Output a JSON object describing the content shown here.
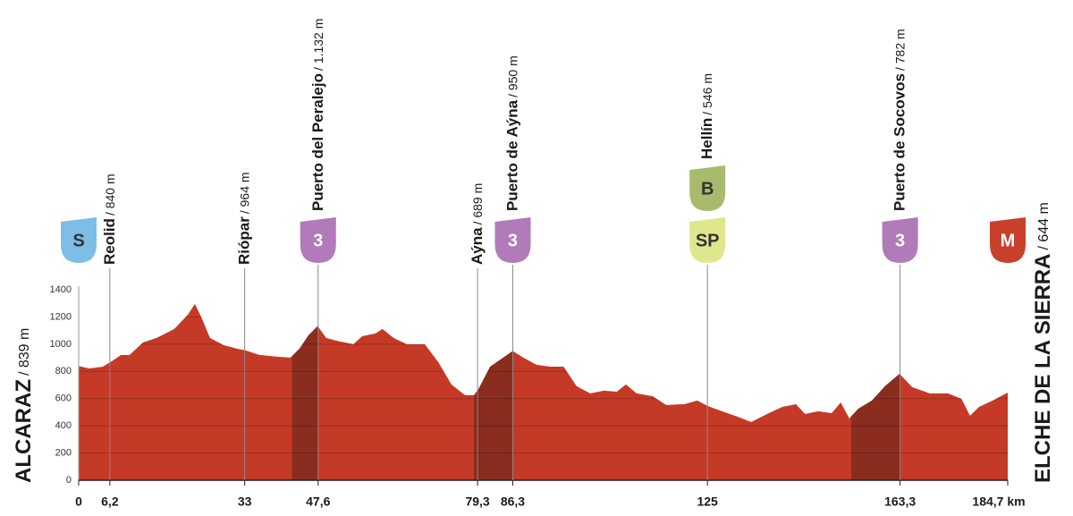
{
  "chart_data": {
    "type": "area",
    "color": "#c43a27",
    "climb_color": "#8a2c1e",
    "x": [
      0,
      2.1,
      4.8,
      6.6,
      8.4,
      10.1,
      12.8,
      15.5,
      19,
      21.7,
      23.1,
      24.4,
      26.1,
      28.8,
      31.5,
      33.2,
      35.9,
      39.5,
      42.1,
      43.9,
      45.7,
      47.5,
      49.2,
      51.9,
      54.6,
      56.4,
      59,
      60.4,
      62.6,
      65.2,
      68.8,
      71.5,
      74.1,
      76.8,
      78.6,
      79.5,
      81.8,
      83.9,
      86.3,
      88.4,
      91,
      93.7,
      96.4,
      99,
      101.7,
      104.4,
      107,
      108.8,
      110.9,
      114.1,
      116.8,
      120.4,
      123,
      125,
      128.4,
      131,
      133.7,
      137.2,
      139.9,
      142.6,
      144.4,
      147,
      149.7,
      151.5,
      153.2,
      155,
      157.7,
      160.3,
      163.2,
      165.7,
      169.2,
      172.8,
      175.5,
      177.2,
      179,
      181.7,
      184.7
    ],
    "values": [
      839,
      822,
      835,
      875,
      920,
      920,
      1013,
      1046,
      1112,
      1217,
      1296,
      1197,
      1046,
      993,
      967,
      954,
      921,
      908,
      901,
      967,
      1066,
      1132,
      1046,
      1020,
      1000,
      1059,
      1079,
      1112,
      1046,
      1000,
      1000,
      868,
      704,
      625,
      625,
      671,
      835,
      888,
      950,
      901,
      849,
      835,
      835,
      691,
      638,
      658,
      651,
      704,
      638,
      618,
      553,
      559,
      586,
      546,
      500,
      467,
      428,
      493,
      539,
      559,
      487,
      507,
      493,
      572,
      454,
      526,
      586,
      691,
      782,
      684,
      638,
      638,
      599,
      474,
      539,
      586,
      644
    ],
    "xlim": [
      0,
      184.7
    ],
    "ylim": [
      0,
      1400
    ],
    "yticks": [
      0,
      200,
      400,
      600,
      800,
      1000,
      1200,
      1400
    ],
    "xticks": [
      0,
      {
        "value": 6.2,
        "label": "6,2"
      },
      33,
      {
        "value": 47.6,
        "label": "47,6"
      },
      {
        "value": 79.3,
        "label": "79,3"
      },
      {
        "value": 86.3,
        "label": "86,3"
      },
      125,
      {
        "value": 163.3,
        "label": "163,3"
      },
      {
        "value": 184.7,
        "label": "184,7 km"
      }
    ],
    "grid": true,
    "climbs": [
      {
        "start": 42.4,
        "end": 47.6
      },
      {
        "start": 78.6,
        "end": 86.3
      },
      {
        "start": 153.6,
        "end": 163.3
      }
    ],
    "start": {
      "name": "ALCARAZ",
      "altitude": "/ 839 m"
    },
    "finish": {
      "name": "ELCHE DE LA SIERRA",
      "altitude": "/ 644 m"
    },
    "waypoints": [
      {
        "x": 6.2,
        "name": "Reolid",
        "altitude": "/ 840 m"
      },
      {
        "x": 33,
        "name": "Riópar",
        "altitude": "/ 964 m"
      },
      {
        "x": 47.6,
        "name": "Puerto del Peralejo",
        "altitude": "/ 1.132 m"
      },
      {
        "x": 79.3,
        "name": "Aýna",
        "altitude": "/ 689 m"
      },
      {
        "x": 86.3,
        "name": "Puerto de Aýna",
        "altitude": "/ 950 m"
      },
      {
        "x": 125,
        "name": "Hellín",
        "altitude": "/ 546 m"
      },
      {
        "x": 163.3,
        "name": "Puerto de Socovos",
        "altitude": "/ 782 m"
      }
    ],
    "markers": [
      {
        "x": 0,
        "label": "S",
        "color": "#7dbde6"
      },
      {
        "x": 47.6,
        "label": "3",
        "color": "#b17ab8"
      },
      {
        "x": 86.3,
        "label": "3",
        "color": "#b17ab8"
      },
      {
        "x": 125,
        "label": "SP",
        "color": "#dfe68c"
      },
      {
        "x": 125,
        "label": "B",
        "color": "#a8bb6c"
      },
      {
        "x": 163.3,
        "label": "3",
        "color": "#b17ab8"
      },
      {
        "x": 184.7,
        "label": "M",
        "color": "#c8402b"
      }
    ]
  }
}
